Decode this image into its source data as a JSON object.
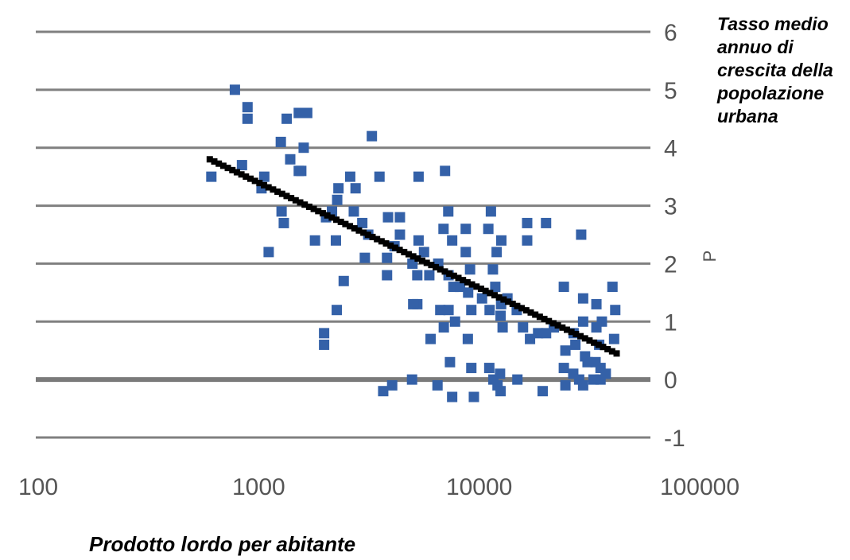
{
  "chart_data": {
    "type": "scatter",
    "title": "",
    "xlabel": "Prodotto lordo per abitante",
    "ylabel_lines": [
      "Tasso medio",
      "annuo di",
      "crescita della",
      "popolazione",
      "urbana"
    ],
    "side_mark": "P",
    "x_scale": "log",
    "xlim": [
      100,
      100000
    ],
    "ylim": [
      -1,
      6
    ],
    "x_ticks": [
      100,
      1000,
      10000,
      100000
    ],
    "x_tick_labels": [
      "100",
      "1000",
      "10000",
      "100000"
    ],
    "y_ticks": [
      -1,
      0,
      1,
      2,
      3,
      4,
      5,
      6
    ],
    "y_tick_labels": [
      "-1",
      "0",
      "1",
      "2",
      "3",
      "4",
      "5",
      "6"
    ],
    "grid": "horizontal",
    "colors": {
      "points": "#3461a8",
      "trendline": "#000000",
      "grid": "#808080",
      "zero_line": "#7a7a7a"
    },
    "points": [
      [
        780,
        5.0
      ],
      [
        890,
        4.7
      ],
      [
        890,
        4.5
      ],
      [
        1340,
        4.5
      ],
      [
        1520,
        4.6
      ],
      [
        1660,
        4.6
      ],
      [
        1260,
        4.1
      ],
      [
        1600,
        4.0
      ],
      [
        1390,
        3.8
      ],
      [
        1520,
        3.6
      ],
      [
        1560,
        3.6
      ],
      [
        3260,
        4.2
      ],
      [
        610,
        3.5
      ],
      [
        840,
        3.7
      ],
      [
        1060,
        3.5
      ],
      [
        1030,
        3.3
      ],
      [
        2600,
        3.5
      ],
      [
        3530,
        3.5
      ],
      [
        5310,
        3.5
      ],
      [
        7000,
        3.6
      ],
      [
        2300,
        3.3
      ],
      [
        2750,
        3.3
      ],
      [
        2270,
        3.1
      ],
      [
        1270,
        2.9
      ],
      [
        1300,
        2.7
      ],
      [
        2020,
        2.8
      ],
      [
        2150,
        2.9
      ],
      [
        2700,
        2.9
      ],
      [
        2950,
        2.7
      ],
      [
        3140,
        2.5
      ],
      [
        3860,
        2.8
      ],
      [
        4370,
        2.8
      ],
      [
        4370,
        2.5
      ],
      [
        7240,
        2.9
      ],
      [
        6890,
        2.6
      ],
      [
        11300,
        2.9
      ],
      [
        11000,
        2.6
      ],
      [
        16500,
        2.7
      ],
      [
        20100,
        2.7
      ],
      [
        1800,
        2.4
      ],
      [
        2240,
        2.4
      ],
      [
        1110,
        2.2
      ],
      [
        4130,
        2.3
      ],
      [
        5310,
        2.4
      ],
      [
        5620,
        2.2
      ],
      [
        7540,
        2.4
      ],
      [
        8690,
        2.6
      ],
      [
        8690,
        2.2
      ],
      [
        12600,
        2.4
      ],
      [
        16500,
        2.4
      ],
      [
        29000,
        2.5
      ],
      [
        3030,
        2.1
      ],
      [
        3820,
        2.1
      ],
      [
        3820,
        1.8
      ],
      [
        4980,
        2.0
      ],
      [
        5240,
        1.8
      ],
      [
        5940,
        1.8
      ],
      [
        6520,
        2.0
      ],
      [
        7260,
        1.8
      ],
      [
        7640,
        1.6
      ],
      [
        8190,
        1.6
      ],
      [
        8910,
        1.5
      ],
      [
        9090,
        1.9
      ],
      [
        11540,
        1.9
      ],
      [
        12000,
        2.2
      ],
      [
        2430,
        1.7
      ],
      [
        11830,
        1.6
      ],
      [
        12570,
        1.3
      ],
      [
        13430,
        1.4
      ],
      [
        10300,
        1.4
      ],
      [
        5240,
        1.3
      ],
      [
        5020,
        1.3
      ],
      [
        6660,
        1.2
      ],
      [
        7260,
        1.2
      ],
      [
        9210,
        1.2
      ],
      [
        11150,
        1.2
      ],
      [
        12500,
        1.1
      ],
      [
        14800,
        1.2
      ],
      [
        2260,
        1.2
      ],
      [
        7770,
        1.0
      ],
      [
        6910,
        0.9
      ],
      [
        12770,
        0.9
      ],
      [
        15800,
        0.9
      ],
      [
        18500,
        0.8
      ],
      [
        21800,
        0.9
      ],
      [
        26800,
        0.8
      ],
      [
        29600,
        1.0
      ],
      [
        36000,
        1.0
      ],
      [
        1980,
        0.8
      ],
      [
        1980,
        0.6
      ],
      [
        6020,
        0.7
      ],
      [
        8880,
        0.7
      ],
      [
        17000,
        0.7
      ],
      [
        20100,
        0.8
      ],
      [
        24200,
        1.6
      ],
      [
        29600,
        1.4
      ],
      [
        34000,
        1.3
      ],
      [
        34000,
        0.9
      ],
      [
        40200,
        1.6
      ],
      [
        41400,
        1.2
      ],
      [
        40900,
        0.7
      ],
      [
        35000,
        0.6
      ],
      [
        27300,
        0.6
      ],
      [
        24600,
        0.5
      ],
      [
        30200,
        0.4
      ],
      [
        24200,
        0.2
      ],
      [
        26700,
        0.1
      ],
      [
        31000,
        0.3
      ],
      [
        33700,
        0.3
      ],
      [
        35500,
        0.2
      ],
      [
        28400,
        0.0
      ],
      [
        24600,
        -0.1
      ],
      [
        29600,
        -0.1
      ],
      [
        33000,
        0.0
      ],
      [
        35500,
        0.0
      ],
      [
        37500,
        0.1
      ],
      [
        7370,
        0.3
      ],
      [
        9210,
        0.2
      ],
      [
        11110,
        0.2
      ],
      [
        12430,
        0.1
      ],
      [
        14900,
        0.0
      ],
      [
        4960,
        0.0
      ],
      [
        6470,
        -0.1
      ],
      [
        7540,
        -0.3
      ],
      [
        9460,
        -0.3
      ],
      [
        12110,
        -0.1
      ],
      [
        19400,
        -0.2
      ],
      [
        3670,
        -0.2
      ],
      [
        4030,
        -0.1
      ],
      [
        11600,
        0.0
      ],
      [
        12500,
        -0.2
      ]
    ],
    "trendline": {
      "type": "logarithmic",
      "x_range": [
        600,
        42000
      ],
      "y_range": [
        3.8,
        0.45
      ]
    }
  }
}
